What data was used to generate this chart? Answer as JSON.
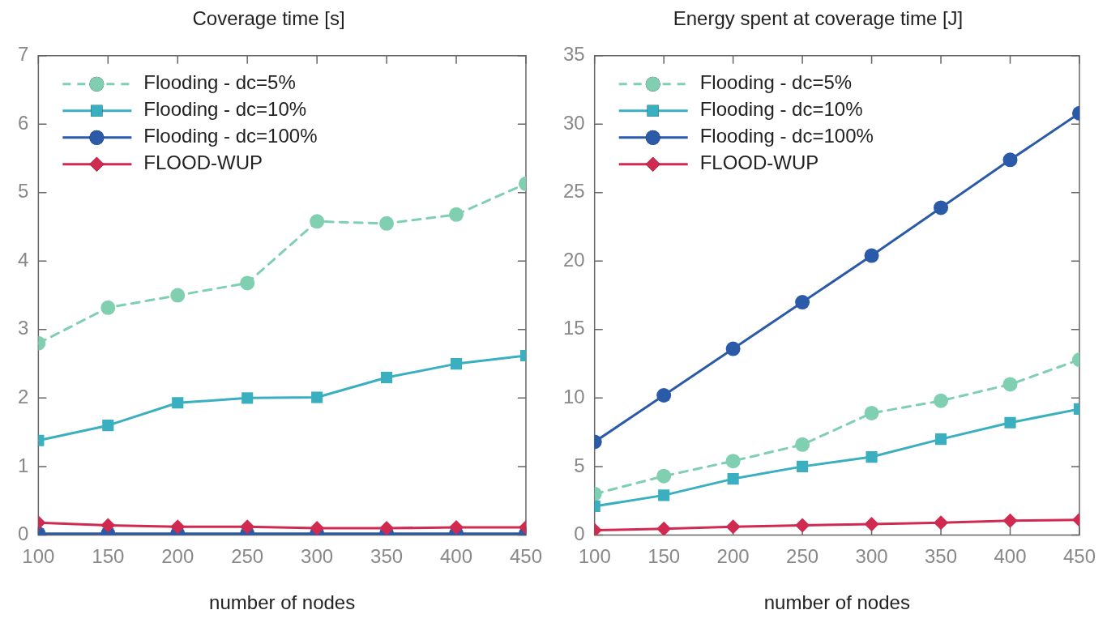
{
  "chart_data": [
    {
      "type": "line",
      "title": "Coverage time [s]",
      "xlabel": "number of nodes",
      "x": [
        100,
        150,
        200,
        250,
        300,
        350,
        400,
        450
      ],
      "xlim": [
        100,
        450
      ],
      "xticks": [
        100,
        150,
        200,
        250,
        300,
        350,
        400,
        450
      ],
      "ylim": [
        0,
        7
      ],
      "yticks": [
        0,
        1,
        2,
        3,
        4,
        5,
        6,
        7
      ],
      "grid": false,
      "legend": "top left",
      "series": [
        {
          "name": "Flooding - dc=5%",
          "color": "#7fcfb0",
          "marker": "circle",
          "line_style": "dashed",
          "values": [
            2.8,
            3.32,
            3.5,
            3.68,
            4.58,
            4.55,
            4.68,
            5.13
          ]
        },
        {
          "name": "Flooding - dc=10%",
          "color": "#3aafbf",
          "marker": "square",
          "line_style": "solid",
          "values": [
            1.38,
            1.6,
            1.93,
            2.0,
            2.01,
            2.3,
            2.5,
            2.62
          ]
        },
        {
          "name": "Flooding - dc=100%",
          "color": "#2a5aa8",
          "marker": "circle",
          "line_style": "solid",
          "values": [
            0.02,
            0.02,
            0.02,
            0.02,
            0.02,
            0.02,
            0.02,
            0.02
          ]
        },
        {
          "name": "FLOOD-WUP",
          "color": "#d02a50",
          "marker": "diamond",
          "line_style": "solid",
          "values": [
            0.18,
            0.14,
            0.12,
            0.12,
            0.1,
            0.1,
            0.11,
            0.11
          ]
        }
      ]
    },
    {
      "type": "line",
      "title": "Energy spent at coverage time [J]",
      "xlabel": "number of nodes",
      "x": [
        100,
        150,
        200,
        250,
        300,
        350,
        400,
        450
      ],
      "xlim": [
        100,
        450
      ],
      "xticks": [
        100,
        150,
        200,
        250,
        300,
        350,
        400,
        450
      ],
      "ylim": [
        0,
        35
      ],
      "yticks": [
        0,
        5,
        10,
        15,
        20,
        25,
        30,
        35
      ],
      "grid": false,
      "legend": "top left",
      "series": [
        {
          "name": "Flooding - dc=5%",
          "color": "#7fcfb0",
          "marker": "circle",
          "line_style": "dashed",
          "values": [
            3.0,
            4.3,
            5.4,
            6.6,
            8.9,
            9.8,
            11.0,
            12.8
          ]
        },
        {
          "name": "Flooding - dc=10%",
          "color": "#3aafbf",
          "marker": "square",
          "line_style": "solid",
          "values": [
            2.1,
            2.9,
            4.1,
            5.0,
            5.7,
            7.0,
            8.2,
            9.2
          ]
        },
        {
          "name": "Flooding - dc=100%",
          "color": "#2a5aa8",
          "marker": "circle",
          "line_style": "solid",
          "values": [
            6.8,
            10.2,
            13.6,
            17.0,
            20.4,
            23.9,
            27.4,
            30.8
          ]
        },
        {
          "name": "FLOOD-WUP",
          "color": "#d02a50",
          "marker": "diamond",
          "line_style": "solid",
          "values": [
            0.35,
            0.45,
            0.6,
            0.7,
            0.8,
            0.9,
            1.05,
            1.1
          ]
        }
      ]
    }
  ]
}
